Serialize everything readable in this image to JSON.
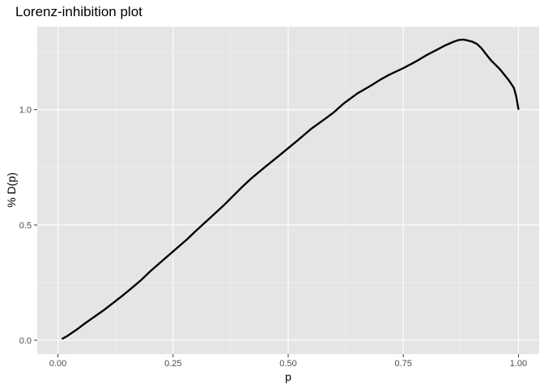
{
  "chart_data": {
    "type": "line",
    "title": "Lorenz-inhibition plot",
    "xlabel": "p",
    "ylabel": "% D(p)",
    "xlim": [
      -0.045,
      1.045
    ],
    "ylim": [
      -0.06,
      1.36
    ],
    "grid": true,
    "legend": "none",
    "x_ticks": [
      0.0,
      0.25,
      0.5,
      0.75,
      1.0
    ],
    "x_tick_labels": [
      "0.00",
      "0.25",
      "0.50",
      "0.75",
      "1.00"
    ],
    "y_ticks": [
      0.0,
      0.5,
      1.0
    ],
    "y_tick_labels": [
      "0.0",
      "0.5",
      "1.0"
    ],
    "colors": {
      "panel": "#e5e5e5",
      "grid_major": "#ffffff",
      "line": "#000000",
      "tick_label": "#4d4d4d"
    },
    "series": [
      {
        "x": [
          0.01,
          0.02,
          0.04,
          0.06,
          0.08,
          0.1,
          0.12,
          0.14,
          0.16,
          0.18,
          0.2,
          0.22,
          0.25,
          0.28,
          0.3,
          0.33,
          0.36,
          0.38,
          0.4,
          0.42,
          0.45,
          0.48,
          0.5,
          0.52,
          0.55,
          0.58,
          0.6,
          0.62,
          0.65,
          0.68,
          0.7,
          0.72,
          0.75,
          0.78,
          0.8,
          0.82,
          0.84,
          0.86,
          0.87,
          0.88,
          0.89,
          0.9,
          0.91,
          0.92,
          0.93,
          0.94,
          0.95,
          0.96,
          0.97,
          0.98,
          0.99,
          0.995,
          1.0
        ],
        "y": [
          0.007,
          0.018,
          0.045,
          0.075,
          0.103,
          0.131,
          0.162,
          0.193,
          0.226,
          0.26,
          0.298,
          0.333,
          0.385,
          0.437,
          0.475,
          0.53,
          0.585,
          0.625,
          0.665,
          0.702,
          0.752,
          0.8,
          0.833,
          0.866,
          0.917,
          0.96,
          0.99,
          1.026,
          1.07,
          1.105,
          1.13,
          1.152,
          1.18,
          1.212,
          1.236,
          1.257,
          1.278,
          1.295,
          1.302,
          1.304,
          1.3,
          1.295,
          1.285,
          1.266,
          1.24,
          1.215,
          1.195,
          1.175,
          1.15,
          1.125,
          1.095,
          1.06,
          1.003
        ]
      }
    ]
  }
}
